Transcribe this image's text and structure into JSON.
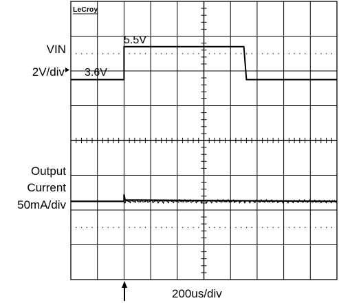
{
  "brand": "LeCroy",
  "time_scale": "200us/div",
  "chart_data": {
    "type": "line",
    "divisions": {
      "horizontal": 10,
      "vertical": 8
    },
    "grid": true,
    "time_per_div": "200us/div",
    "channels": [
      {
        "name": "VIN",
        "scale": "2V/div",
        "scale_value": 2,
        "offset_div": -1.75,
        "annotations": [
          "5.5V",
          "3.6V"
        ],
        "points": [
          [
            0,
            3.6
          ],
          [
            2.0,
            3.6
          ],
          [
            2.0,
            5.5
          ],
          [
            6.5,
            5.5
          ],
          [
            6.6,
            3.6
          ],
          [
            10,
            3.6
          ]
        ]
      },
      {
        "name": "Output Current",
        "label_lines": [
          "Output",
          "Current"
        ],
        "scale": "50mA/div",
        "scale_value": 50,
        "offset_div": -1.75,
        "points": [
          [
            0,
            0
          ],
          [
            2.0,
            0
          ],
          [
            2.0,
            10
          ],
          [
            2.04,
            2
          ],
          [
            10,
            0
          ]
        ]
      }
    ],
    "trigger_marker_div": 2.0
  }
}
